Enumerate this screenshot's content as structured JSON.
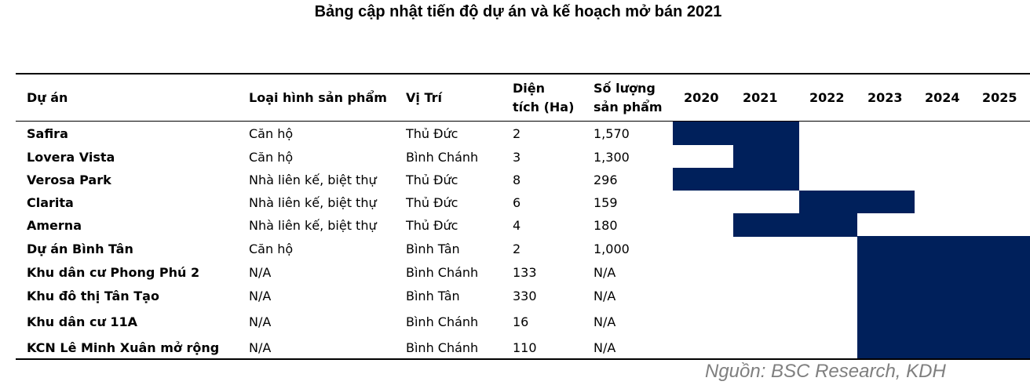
{
  "title": "Bảng cập nhật tiến độ dự án và kế hoạch mở bán 2021",
  "headers": {
    "project": "Dự án",
    "type": "Loại hình sản phẩm",
    "location": "Vị Trí",
    "area_line1": "Diện",
    "area_line2": "tích (Ha)",
    "units_line1": "Số lượng",
    "units_line2": "sản phẩm",
    "years": [
      "2020",
      "2021",
      "2022",
      "2023",
      "2024",
      "2025"
    ]
  },
  "rows": [
    {
      "project": "Safira",
      "type": "Căn hộ",
      "location": "Thủ Đức",
      "area": "2",
      "units": "1,570",
      "timeline": "2020–2021"
    },
    {
      "project": "Lovera Vista",
      "type": "Căn hộ",
      "location": "Bình Chánh",
      "area": "3",
      "units": "1,300",
      "timeline": "2021"
    },
    {
      "project": "Verosa Park",
      "type": "Nhà liên kế, biệt thự",
      "location": "Thủ Đức",
      "area": "8",
      "units": "296",
      "timeline": "2020–2021"
    },
    {
      "project": "Clarita",
      "type": "Nhà liên kế, biệt thự",
      "location": "Thủ Đức",
      "area": "6",
      "units": "159",
      "timeline": "2022–2023"
    },
    {
      "project": "Amerna",
      "type": "Nhà liên kế, biệt thự",
      "location": "Thủ Đức",
      "area": "4",
      "units": "180",
      "timeline": "2021–2022"
    },
    {
      "project": "Dự án Bình Tân",
      "type": "Căn hộ",
      "location": "Bình Tân",
      "area": "2",
      "units": "1,000",
      "timeline": "2023–2025"
    },
    {
      "project": "Khu dân cư Phong Phú 2",
      "type": "N/A",
      "location": "Bình Chánh",
      "area": "133",
      "units": "N/A",
      "timeline": "2023–2025"
    },
    {
      "project": "Khu đô thị Tân Tạo",
      "type": "N/A",
      "location": "Bình Tân",
      "area": "330",
      "units": "N/A",
      "timeline": "2023–2025"
    },
    {
      "project": "Khu dân cư 11A",
      "type": "N/A",
      "location": "Bình Chánh",
      "area": "16",
      "units": "N/A",
      "timeline": "2023–2025"
    },
    {
      "project": "KCN Lê Minh Xuân mở rộng",
      "type": "N/A",
      "location": "Bình Chánh",
      "area": "110",
      "units": "N/A",
      "timeline": "2023–2025"
    }
  ],
  "source": "Nguồn: BSC Research, KDH",
  "colors": {
    "bar": "#00205b",
    "source_text": "#7f7f7f"
  }
}
